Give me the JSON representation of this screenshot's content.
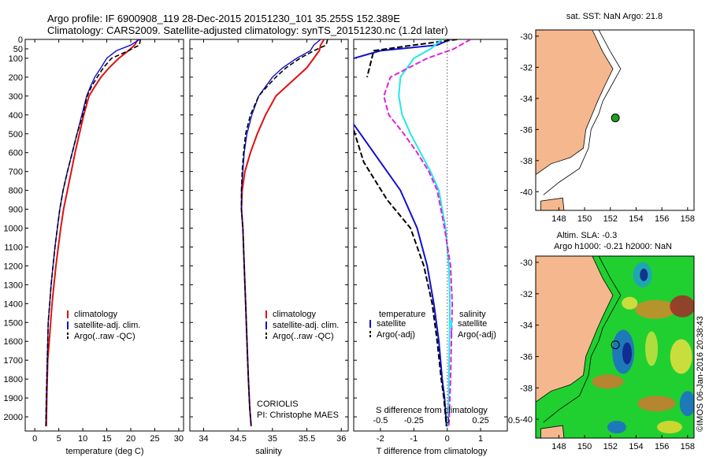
{
  "header": {
    "line1": "Argo profile: IF 6900908_119 28-Dec-2015 20151230_101 35.255S 152.389E",
    "line2": "Climatology: CARS2009. Satellite-adjusted climatology: synTS_20151230.nc (1.2d later)"
  },
  "colors": {
    "climatology": "#e01010",
    "satellite": "#1010d0",
    "argo": "#000000",
    "cyan": "#20e8e8",
    "magenta": "#e020e0",
    "land": "#f5b88e",
    "ocean": "#ffffff"
  },
  "chart_data": [
    {
      "type": "line",
      "id": "temperature",
      "xlabel": "temperature (deg C)",
      "xlim": [
        -2,
        31
      ],
      "ylim": [
        0,
        2075
      ],
      "xticks": [
        0,
        5,
        10,
        15,
        20,
        25,
        30
      ],
      "yticks": [
        0,
        50,
        100,
        200,
        300,
        400,
        500,
        600,
        700,
        800,
        900,
        1000,
        1100,
        1200,
        1300,
        1400,
        1500,
        1600,
        1700,
        1800,
        1900,
        2000
      ],
      "legend": [
        "climatology",
        "satellite-adj. clim.",
        "Argo(..raw -QC)"
      ],
      "series": [
        {
          "name": "climatology",
          "x": [
            21.5,
            20.8,
            19.5,
            17.5,
            15.5,
            13.8,
            12.5,
            11.3,
            10.2,
            9.3,
            8.4,
            7.6,
            6.8,
            6.0,
            5.4,
            4.9,
            4.4,
            4.0,
            3.6,
            3.3,
            3.0,
            2.7,
            2.5,
            2.4
          ],
          "y": [
            0,
            30,
            60,
            100,
            150,
            200,
            250,
            300,
            400,
            500,
            600,
            700,
            800,
            900,
            1000,
            1100,
            1200,
            1300,
            1400,
            1500,
            1600,
            1700,
            1900,
            2050
          ]
        },
        {
          "name": "satellite-adj. clim.",
          "x": [
            21.8,
            20.0,
            17.0,
            15.0,
            13.8,
            12.5,
            11.6,
            10.8,
            9.8,
            8.8,
            7.8,
            6.8,
            5.9,
            5.2,
            4.7,
            4.2,
            3.8,
            3.4,
            3.1,
            2.8,
            2.6,
            2.4,
            2.3
          ],
          "y": [
            0,
            30,
            60,
            100,
            150,
            200,
            250,
            300,
            400,
            500,
            600,
            700,
            800,
            900,
            1000,
            1100,
            1200,
            1300,
            1400,
            1500,
            1700,
            1900,
            2050
          ]
        },
        {
          "name": "Argo(..raw -QC)",
          "x": [
            22.0,
            21.8,
            19.5,
            16.0,
            14.3,
            13.0,
            11.8,
            10.9,
            10.0,
            8.8,
            7.8,
            6.8,
            5.9,
            5.2,
            4.7,
            4.2,
            3.8,
            3.4,
            3.1,
            2.8,
            2.6,
            2.4,
            2.3
          ],
          "y": [
            0,
            30,
            60,
            100,
            150,
            200,
            250,
            300,
            400,
            500,
            600,
            700,
            800,
            900,
            1000,
            1100,
            1200,
            1300,
            1400,
            1500,
            1700,
            1900,
            2050
          ]
        }
      ]
    },
    {
      "type": "line",
      "id": "salinity",
      "xlabel": "salinity",
      "xlim": [
        33.8,
        36.1
      ],
      "ylim": [
        0,
        2075
      ],
      "xticks": [
        34,
        34.5,
        35,
        35.5,
        36
      ],
      "legend": [
        "climatology",
        "satellite-adj. clim.",
        "Argo(..raw -QC)"
      ],
      "annotation": [
        "CORIOLIS",
        "PI: Christophe MAES"
      ],
      "series": [
        {
          "name": "climatology",
          "x": [
            35.75,
            35.7,
            35.68,
            35.6,
            35.5,
            35.35,
            35.2,
            35.05,
            34.9,
            34.78,
            34.68,
            34.6,
            34.56,
            34.55,
            34.57,
            34.59,
            34.61,
            34.63,
            34.65,
            34.67,
            34.69
          ],
          "y": [
            0,
            30,
            60,
            100,
            150,
            200,
            250,
            300,
            400,
            500,
            600,
            700,
            800,
            900,
            1000,
            1200,
            1400,
            1600,
            1800,
            1950,
            2050
          ]
        },
        {
          "name": "satellite-adj. clim.",
          "x": [
            35.7,
            35.6,
            35.55,
            35.35,
            35.15,
            35.0,
            34.9,
            34.8,
            34.7,
            34.63,
            34.59,
            34.57,
            34.55,
            34.55,
            34.57,
            34.59,
            34.61,
            34.63,
            34.65,
            34.67,
            34.69
          ],
          "y": [
            0,
            30,
            60,
            100,
            150,
            200,
            250,
            300,
            400,
            500,
            600,
            700,
            800,
            900,
            1000,
            1200,
            1400,
            1600,
            1800,
            1950,
            2050
          ]
        },
        {
          "name": "Argo(..raw -QC)",
          "x": [
            35.8,
            35.78,
            35.6,
            35.4,
            35.2,
            35.05,
            34.92,
            34.8,
            34.68,
            34.61,
            34.58,
            34.56,
            34.55,
            34.55,
            34.57,
            34.59,
            34.61,
            34.63,
            34.65,
            34.67,
            34.69
          ],
          "y": [
            0,
            30,
            60,
            100,
            150,
            200,
            250,
            300,
            400,
            500,
            600,
            700,
            800,
            900,
            1000,
            1200,
            1400,
            1600,
            1800,
            1950,
            2050
          ]
        }
      ]
    },
    {
      "type": "line",
      "id": "difference",
      "xlabel_bottom": "T difference from climatology",
      "xlabel_top": "S difference from climatology",
      "xlim": [
        -2.8,
        1.8
      ],
      "ylim": [
        0,
        2075
      ],
      "xticks": [
        -2,
        -1,
        0,
        1
      ],
      "xticks_s": [
        -0.5,
        -0.25,
        0,
        0.25,
        0.5
      ],
      "xticks_s_labels": [
        "-0.5",
        "-0.25",
        "0",
        "0.25",
        "0.5"
      ],
      "legend": {
        "temperature_title": "temperature",
        "salinity_title": "salinity",
        "entries": [
          "satellite",
          "Argo(-adj)",
          "satellite",
          "Argo(-adj)"
        ]
      },
      "series": [
        {
          "name": "temperature satellite",
          "x": [
            0.1,
            -0.3,
            -2.0,
            -2.8
          ],
          "y": [
            0,
            30,
            60,
            100
          ]
        },
        {
          "name": "temperature Argo(-adj)",
          "x": [
            0.3,
            -1.0,
            -2.2,
            -2.4
          ],
          "y": [
            0,
            30,
            60,
            200
          ]
        },
        {
          "name": "temperature satellite deep",
          "x": [
            -2.8,
            -2.2,
            -1.4,
            -0.9,
            -0.6,
            -0.4,
            -0.25,
            -0.15,
            -0.08,
            -0.04,
            -0.02
          ],
          "y": [
            450,
            600,
            800,
            1000,
            1200,
            1400,
            1600,
            1800,
            1900,
            2000,
            2050
          ]
        },
        {
          "name": "temperature Argo(-adj) deep",
          "x": [
            -2.8,
            -2.5,
            -1.8,
            -1.1,
            -0.7,
            -0.45,
            -0.3,
            -0.18,
            -0.1,
            -0.05,
            -0.02
          ],
          "y": [
            480,
            650,
            850,
            1000,
            1200,
            1400,
            1600,
            1800,
            1900,
            2000,
            2050
          ]
        },
        {
          "name": "salinity satellite",
          "x": [
            -0.15,
            -0.5,
            -1.0,
            -1.4,
            -1.45,
            -1.35,
            -1.1,
            -0.8,
            -0.5,
            -0.25,
            -0.05,
            0.05,
            0.08,
            0.05,
            0.03
          ],
          "y": [
            0,
            50,
            100,
            200,
            300,
            400,
            500,
            600,
            700,
            800,
            1000,
            1200,
            1400,
            1800,
            2050
          ]
        },
        {
          "name": "salinity Argo(-adj)",
          "x": [
            0.7,
            0.2,
            -0.6,
            -1.7,
            -1.9,
            -1.75,
            -1.3,
            -0.9,
            -0.55,
            -0.3,
            -0.08,
            0.1,
            0.15,
            0.1,
            0.05
          ],
          "y": [
            0,
            50,
            100,
            200,
            300,
            400,
            500,
            600,
            700,
            800,
            1000,
            1200,
            1400,
            1800,
            2050
          ]
        }
      ]
    }
  ],
  "maps": [
    {
      "id": "sst-map",
      "title": "sat. SST: NaN Argo: 21.8",
      "xlim": [
        146.2,
        158.5
      ],
      "ylim": [
        -41.2,
        -29.6
      ],
      "xticks": [
        148,
        150,
        152,
        154,
        156,
        158
      ],
      "yticks": [
        -30,
        -32,
        -34,
        -36,
        -38,
        -40
      ],
      "float": {
        "lon": 152.389,
        "lat": -35.255
      }
    },
    {
      "id": "sla-map",
      "title_line1": "Altim. SLA: -0.3",
      "title_line2": "Argo h1000: -0.21 h2000: NaN",
      "xlim": [
        146.2,
        158.5
      ],
      "ylim": [
        -41.2,
        -29.6
      ],
      "xticks": [
        148,
        150,
        152,
        154,
        156,
        158
      ],
      "yticks": [
        -30,
        -32,
        -34,
        -36,
        -38,
        -40
      ],
      "float": {
        "lon": 152.389,
        "lat": -35.255
      }
    }
  ],
  "credit": "©IMOS 06-Jan-2016 20:38:43"
}
